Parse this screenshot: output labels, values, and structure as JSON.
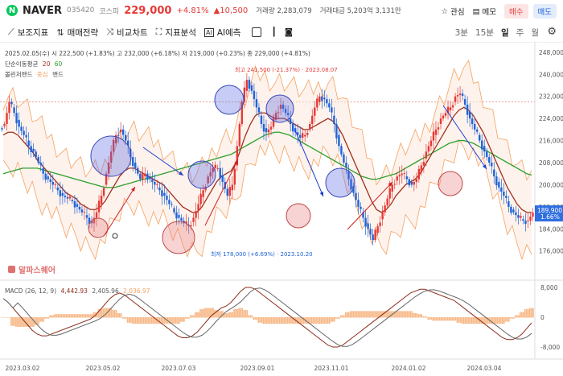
{
  "header": {
    "logo": "N",
    "name": "NAVER",
    "code": "035420",
    "market": "코스피",
    "price": "229,000",
    "change_pct": "+4.81%",
    "change_abs": "▲10,500",
    "volume": "거래량 2,283,079",
    "amount": "거래대금 5,203억 3,131만",
    "watch_label": "관심",
    "memo_label": "메모",
    "buy_label": "매수",
    "sell_label": "매도"
  },
  "toolbar": {
    "items": [
      "보조지표",
      "매매전략",
      "비교차트",
      "지표분석",
      "AI예측"
    ],
    "timeframes": [
      "3분",
      "15분",
      "일",
      "주",
      "월"
    ],
    "active_timeframe": "일"
  },
  "ohlc": "2025.02.05(수) 시 222,500 (+1.83%) 고 232,000 (+6.18%) 저 219,000 (+0.23%) 종 229,000 (+4.81%)",
  "legend": {
    "ma_label": "단순이동평균",
    "ma_short": "20",
    "ma_long": "60",
    "bb_label": "볼린저밴드",
    "bb_center": "중심",
    "bb_band": "밴드"
  },
  "annotations": {
    "high": "최고 241,500 (-21.37%) · 2023.08.07",
    "low": "최저 178,000 (+6.69%) · 2023.10.20"
  },
  "watermark": "알파스퀘어",
  "macd_label": {
    "name": "MACD",
    "params": "(26, 12, 9)",
    "macd": "4,442.93",
    "signal": "2,405.96",
    "hist": "2,036.97"
  },
  "price_axis": [
    "248,000",
    "240,000",
    "232,000",
    "224,000",
    "216,000",
    "208,000",
    "200,000",
    "192,000",
    "184,000",
    "176,000"
  ],
  "macd_axis": [
    "8,000",
    "0",
    "-8,000"
  ],
  "last_price_tag": {
    "price": "189,900",
    "pct": "1.66%"
  },
  "date_axis": [
    "2023.03.02",
    "2023.05.02",
    "2023.07.03",
    "2023.09.01",
    "2023.11.01",
    "2024.01.02",
    "2024.03.04"
  ],
  "colors": {
    "up": "#e53935",
    "down": "#1e63d8",
    "ma20": "#a0301f",
    "ma60": "#2ca02c",
    "band": "#f4a261",
    "circle_blue": "#5b6ee1",
    "circle_red": "#e88080",
    "last_tag": "#2f6fe0"
  },
  "chart_data": {
    "type": "candlestick",
    "price_ylim": [
      173000,
      250000
    ],
    "macd_ylim": [
      -9500,
      9500
    ],
    "price_path": [
      222000,
      230000,
      226000,
      221000,
      218000,
      214000,
      212000,
      208000,
      204000,
      202000,
      200000,
      198000,
      196000,
      195000,
      194000,
      192000,
      190000,
      188000,
      186000,
      190000,
      196000,
      204000,
      212000,
      218000,
      220000,
      216000,
      210000,
      206000,
      202000,
      204000,
      202000,
      200000,
      198000,
      196000,
      193000,
      190000,
      188000,
      186000,
      185000,
      188000,
      193000,
      198000,
      203000,
      206000,
      206000,
      201000,
      196000,
      200000,
      214000,
      230000,
      238000,
      234000,
      228000,
      222000,
      219000,
      221000,
      226000,
      229000,
      226000,
      222000,
      219000,
      217000,
      218000,
      222000,
      228000,
      232000,
      231000,
      228000,
      222000,
      214000,
      208000,
      202000,
      197000,
      192000,
      188000,
      184000,
      180000,
      185000,
      190000,
      195000,
      200000,
      203000,
      204000,
      202000,
      200000,
      202000,
      207000,
      212000,
      216000,
      220000,
      224000,
      226000,
      228000,
      232000,
      233000,
      229000,
      224000,
      220000,
      216000,
      212000,
      208000,
      203000,
      199000,
      196000,
      192000,
      190000,
      188000,
      187000,
      187000,
      189900
    ],
    "ma20_path": [
      218000,
      219000,
      219000,
      218000,
      216000,
      214000,
      212000,
      209000,
      207000,
      205000,
      203000,
      201000,
      199000,
      197000,
      196000,
      195000,
      193000,
      192000,
      191000,
      191000,
      192000,
      194000,
      197000,
      200000,
      203000,
      205000,
      206000,
      206000,
      205000,
      204000,
      203000,
      202000,
      201000,
      200000,
      198000,
      196000,
      194000,
      192000,
      191000,
      190000,
      190000,
      192000,
      195000,
      198000,
      201000,
      203000,
      204000,
      205000,
      208000,
      213000,
      218000,
      222000,
      225000,
      226000,
      226000,
      225000,
      224000,
      224000,
      224000,
      223000,
      222000,
      221000,
      220000,
      220000,
      221000,
      222000,
      223000,
      224000,
      223000,
      221000,
      218000,
      214000,
      210000,
      206000,
      202000,
      198000,
      194000,
      191000,
      190000,
      191000,
      193000,
      196000,
      198000,
      200000,
      201000,
      202000,
      204000,
      207000,
      210000,
      213000,
      216000,
      219000,
      222000,
      225000,
      227000,
      228000,
      227000,
      225000,
      222000,
      219000,
      215000,
      211000,
      207000,
      203000,
      199000,
      196000,
      193000,
      191000,
      190000,
      190000
    ],
    "ma60_path": [
      204000,
      204500,
      205000,
      205500,
      206000,
      206000,
      206000,
      206000,
      205500,
      205000,
      204500,
      204000,
      203500,
      203000,
      202500,
      202000,
      201500,
      201000,
      200500,
      200000,
      199500,
      199000,
      199000,
      199000,
      199500,
      200000,
      200500,
      201000,
      201500,
      202000,
      202500,
      203000,
      203500,
      204000,
      204500,
      205000,
      205500,
      206000,
      206500,
      207000,
      207500,
      208000,
      208500,
      209000,
      209500,
      210000,
      210500,
      211000,
      212000,
      213000,
      214000,
      215000,
      216000,
      217000,
      218000,
      218500,
      219000,
      219000,
      218500,
      218000,
      217000,
      216000,
      215000,
      214000,
      213000,
      212000,
      211000,
      210000,
      209000,
      208000,
      207000,
      206000,
      205000,
      204000,
      203000,
      202500,
      202000,
      202000,
      202500,
      203000,
      203500,
      204000,
      205000,
      206000,
      207000,
      208000,
      209000,
      210000,
      211000,
      212000,
      213000,
      214000,
      215000,
      215500,
      216000,
      216000,
      215500,
      215000,
      214000,
      213000,
      212000,
      211000,
      210000,
      209000,
      208000,
      207000,
      206000,
      205000,
      204000,
      203500
    ],
    "macd_path": [
      5000,
      4000,
      2500,
      1000,
      -500,
      -2000,
      -3500,
      -4500,
      -5000,
      -5000,
      -4500,
      -4000,
      -3500,
      -3000,
      -2500,
      -2000,
      -1500,
      -1000,
      -500,
      500,
      2000,
      3500,
      5000,
      6000,
      6500,
      6000,
      5000,
      4000,
      3000,
      2000,
      1000,
      0,
      -1000,
      -2000,
      -3000,
      -4000,
      -5000,
      -5500,
      -5500,
      -5000,
      -4000,
      -2500,
      -1000,
      500,
      1500,
      2500,
      3000,
      4000,
      5500,
      7000,
      8000,
      8000,
      7500,
      6500,
      5500,
      4500,
      3500,
      2500,
      1500,
      500,
      -500,
      -1500,
      -2500,
      -3500,
      -4500,
      -5500,
      -6500,
      -7500,
      -8000,
      -8000,
      -7500,
      -6500,
      -5500,
      -4500,
      -3500,
      -2500,
      -1500,
      -500,
      500,
      1500,
      2500,
      3500,
      4500,
      5500,
      6500,
      7000,
      7500,
      7500,
      7000,
      6500,
      6000,
      5500,
      5000,
      4500,
      3500,
      2500,
      1500,
      500,
      -500,
      -1500,
      -2500,
      -3500,
      -4500,
      -5500,
      -6000,
      -6000,
      -5500,
      -4500,
      -3000,
      -1500
    ]
  }
}
